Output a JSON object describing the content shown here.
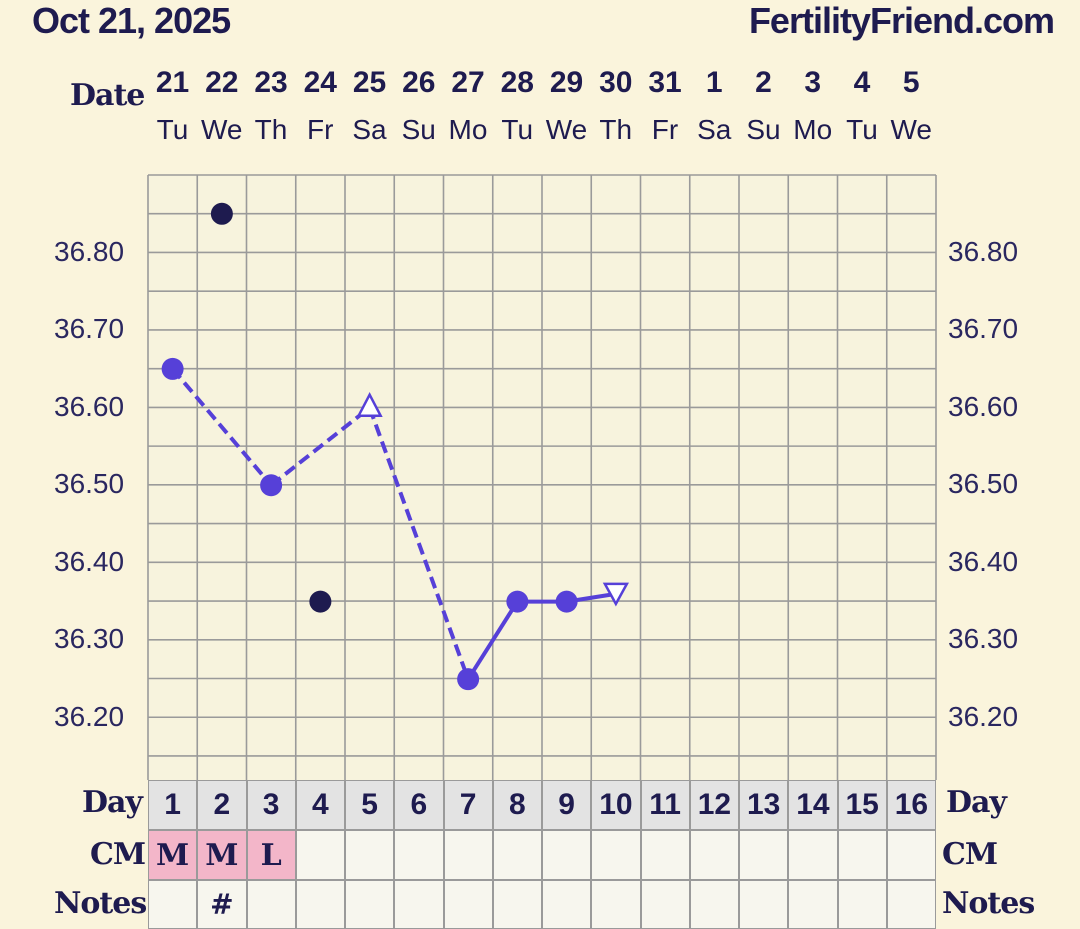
{
  "header": {
    "date": "Oct 21, 2025",
    "site": "FertilityFriend.com"
  },
  "labels": {
    "date": "Date",
    "day": "Day",
    "cm": "CM",
    "notes": "Notes"
  },
  "colors": {
    "background": "#faf4dc",
    "plot_background": "#f7f3dd",
    "grid": "#9a9a9a",
    "line": "#5640d8",
    "discarded_point": "#1e1b4f",
    "cm_highlight": "#f3b6c9",
    "day_row": "#e3e3e3"
  },
  "chart_data": {
    "type": "line",
    "x_dates": [
      "21",
      "22",
      "23",
      "24",
      "25",
      "26",
      "27",
      "28",
      "29",
      "30",
      "31",
      "1",
      "2",
      "3",
      "4",
      "5"
    ],
    "x_weekdays": [
      "Tu",
      "We",
      "Th",
      "Fr",
      "Sa",
      "Su",
      "Mo",
      "Tu",
      "We",
      "Th",
      "Fr",
      "Sa",
      "Su",
      "Mo",
      "Tu",
      "We"
    ],
    "cycle_days": [
      "1",
      "2",
      "3",
      "4",
      "5",
      "6",
      "7",
      "8",
      "9",
      "10",
      "11",
      "12",
      "13",
      "14",
      "15",
      "16"
    ],
    "y_ticks": [
      "36.80",
      "36.70",
      "36.60",
      "36.50",
      "36.40",
      "36.30",
      "36.20"
    ],
    "ylim": [
      36.12,
      36.9
    ],
    "grid": true,
    "series": [
      {
        "points": [
          {
            "day": 1,
            "temp": 36.65,
            "marker": "circle"
          },
          {
            "day": 3,
            "temp": 36.5,
            "marker": "circle"
          },
          {
            "day": 5,
            "temp": 36.6,
            "marker": "open-triangle-up"
          },
          {
            "day": 7,
            "temp": 36.25,
            "marker": "circle"
          },
          {
            "day": 8,
            "temp": 36.35,
            "marker": "circle"
          },
          {
            "day": 9,
            "temp": 36.35,
            "marker": "circle"
          },
          {
            "day": 10,
            "temp": 36.36,
            "marker": "open-triangle-down"
          }
        ],
        "segments": [
          {
            "from": 1,
            "to": 3,
            "style": "dashed"
          },
          {
            "from": 3,
            "to": 5,
            "style": "dashed"
          },
          {
            "from": 5,
            "to": 7,
            "style": "dashed"
          },
          {
            "from": 7,
            "to": 8,
            "style": "solid"
          },
          {
            "from": 8,
            "to": 9,
            "style": "solid"
          },
          {
            "from": 9,
            "to": 10,
            "style": "solid"
          }
        ]
      }
    ],
    "discarded_points": [
      {
        "day": 2,
        "temp": 36.85
      },
      {
        "day": 4,
        "temp": 36.35
      }
    ],
    "cm": [
      "M",
      "M",
      "L",
      "",
      "",
      "",
      "",
      "",
      "",
      "",
      "",
      "",
      "",
      "",
      "",
      ""
    ],
    "notes": [
      "",
      "#",
      "",
      "",
      "",
      "",
      "",
      "",
      "",
      "",
      "",
      "",
      "",
      "",
      "",
      ""
    ]
  }
}
